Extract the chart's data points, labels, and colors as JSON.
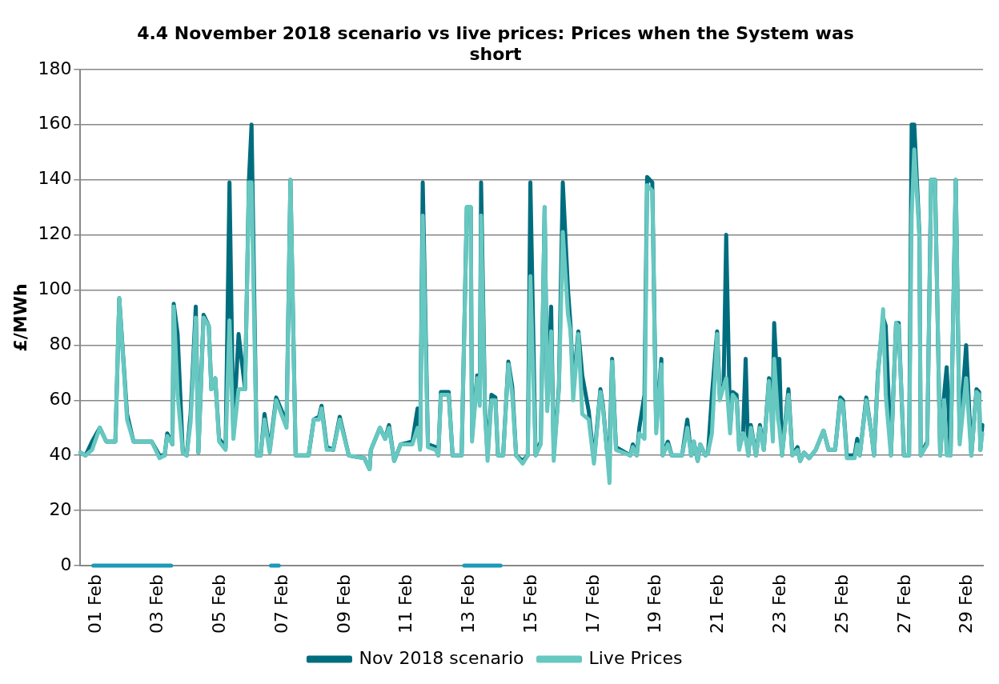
{
  "chart_data": {
    "type": "line",
    "title": "4.4 November 2018 scenario vs live prices: Prices when the System was short",
    "ylabel": "£/MWh",
    "x": [
      "--02-01T00:00",
      "--02-01T04:00",
      "--02-01T09:00",
      "--02-01T15:00",
      "--02-01T20:00",
      "--02-02T03:00",
      "--02-02T06:00",
      "--02-02T12:00",
      "--02-02T17:00",
      "--02-03T07:00",
      "--02-03T13:00",
      "--02-03T17:00",
      "--02-03T19:00",
      "--02-03T23:00",
      "--02-04T00:00",
      "--02-04T03:00",
      "--02-04T07:00",
      "--02-04T10:00",
      "--02-04T13:00",
      "--02-04T17:00",
      "--02-04T19:00",
      "--02-04T23:00",
      "--02-05T03:00",
      "--02-05T05:00",
      "--02-05T08:00",
      "--02-05T11:00",
      "--02-05T16:00",
      "--02-05T19:00",
      "--02-05T22:00",
      "--02-06T02:00",
      "--02-06T07:00",
      "--02-06T10:00",
      "--02-06T12:00",
      "--02-06T16:00",
      "--02-06T19:00",
      "--02-06T22:00",
      "--02-07T02:00",
      "--02-07T07:00",
      "--02-07T15:00",
      "--02-07T18:00",
      "--02-07T22:00",
      "--02-08T08:00",
      "--02-08T12:00",
      "--02-08T16:00",
      "--02-08T18:00",
      "--02-08T22:00",
      "--02-09T03:00",
      "--02-09T08:00",
      "--02-09T15:00",
      "--02-10T03:00",
      "--02-10T07:00",
      "--02-10T08:00",
      "--02-10T15:00",
      "--02-10T19:00",
      "--02-10T22:00",
      "--02-11T02:00",
      "--02-11T07:00",
      "--02-11T16:00",
      "--02-11T20:00",
      "--02-11T22:00",
      "--02-12T00:00",
      "--02-12T04:00",
      "--02-12T10:00",
      "--02-12T12:00",
      "--02-12T14:00",
      "--02-12T20:00",
      "--02-12T23:00",
      "--02-13T06:00",
      "--02-13T10:00",
      "--02-13T13:00",
      "--02-13T14:00",
      "--02-13T18:00",
      "--02-13T20:00",
      "--02-13T21:00",
      "--02-14T00:00",
      "--02-14T02:00",
      "--02-14T05:00",
      "--02-14T08:00",
      "--02-14T10:00",
      "--02-14T14:00",
      "--02-14T18:00",
      "--02-14T21:00",
      "--02-15T00:00",
      "--02-15T05:00",
      "--02-15T09:00",
      "--02-15T11:00",
      "--02-15T15:00",
      "--02-15T19:00",
      "--02-15T22:00",
      "--02-16T00:00",
      "--02-16T03:00",
      "--02-16T05:00",
      "--02-16T09:00",
      "--02-16T12:00",
      "--02-16T16:00",
      "--02-16T18:00",
      "--02-16T20:00",
      "--02-17T00:00",
      "--02-17T03:00",
      "--02-17T08:00",
      "--02-17T12:00",
      "--02-17T17:00",
      "--02-17T19:00",
      "--02-17T22:00",
      "--02-18T00:00",
      "--02-18T02:00",
      "--02-18T05:00",
      "--02-18T16:00",
      "--02-18T18:00",
      "--02-18T21:00",
      "--02-18T23:00",
      "--02-19T03:00",
      "--02-19T05:00",
      "--02-19T09:00",
      "--02-19T12:00",
      "--02-19T16:00",
      "--02-19T17:00",
      "--02-19T21:00",
      "--02-20T00:00",
      "--02-20T08:00",
      "--02-20T12:00",
      "--02-20T15:00",
      "--02-20T17:00",
      "--02-20T20:00",
      "--02-20T22:00",
      "--02-21T02:00",
      "--02-21T04:00",
      "--02-21T07:00",
      "--02-21T11:00",
      "--02-21T13:00",
      "--02-21T16:00",
      "--02-21T18:00",
      "--02-21T21:00",
      "--02-21T23:00",
      "--02-22T02:00",
      "--02-22T04:00",
      "--02-22T07:00",
      "--02-22T09:00",
      "--02-22T11:00",
      "--02-22T13:00",
      "--02-22T17:00",
      "--02-22T20:00",
      "--02-22T23:00",
      "--02-23T03:00",
      "--02-23T06:00",
      "--02-23T07:00",
      "--02-23T10:00",
      "--02-23T11:00",
      "--02-23T13:00",
      "--02-23T18:00",
      "--02-23T21:00",
      "--02-24T01:00",
      "--02-24T03:00",
      "--02-24T06:00",
      "--02-24T10:00",
      "--02-24T15:00",
      "--02-24T21:00",
      "--02-25T01:00",
      "--02-25T06:00",
      "--02-25T10:00",
      "--02-25T12:00",
      "--02-25T15:00",
      "--02-25T21:00",
      "--02-25T23:00",
      "--02-26T01:00",
      "--02-26T06:00",
      "--02-26T10:00",
      "--02-26T12:00",
      "--02-26T15:00",
      "--02-26T19:00",
      "--02-26T21:00",
      "--02-27T01:00",
      "--02-27T05:00",
      "--02-27T07:00",
      "--02-27T11:00",
      "--02-27T15:00",
      "--02-27T17:00",
      "--02-27T19:00",
      "--02-27T23:00",
      "--02-28T00:00",
      "--02-28T05:00",
      "--02-28T08:00",
      "--02-28T11:00",
      "--02-28T15:00",
      "--02-28T18:00",
      "--02-28T20:00",
      "--02-28T23:00",
      "--02-29T03:00",
      "--02-29T06:00",
      "--02-29T11:00",
      "--02-29T15:00",
      "--02-29T19:00",
      "--02-29T21:00",
      "--02-29T22:00",
      "--02-29T23:30"
    ],
    "series": [
      {
        "name": "Nov 2018 scenario",
        "color": "#006d7e",
        "values": [
          41,
          40,
          45,
          50,
          45,
          45,
          97,
          55,
          45,
          45,
          40,
          40,
          48,
          44,
          95,
          84,
          41,
          40,
          55,
          94,
          41,
          91,
          87,
          64,
          68,
          46,
          43,
          139,
          48,
          84,
          64,
          140,
          160,
          40,
          40,
          55,
          42,
          61,
          52,
          140,
          40,
          40,
          53,
          54,
          58,
          43,
          42,
          54,
          40,
          39,
          35,
          42,
          50,
          46,
          51,
          38,
          44,
          45,
          57,
          43,
          139,
          44,
          43,
          40,
          63,
          63,
          40,
          40,
          130,
          130,
          47,
          69,
          60,
          139,
          57,
          40,
          62,
          61,
          40,
          40,
          74,
          65,
          40,
          38,
          40,
          139,
          40,
          45,
          130,
          58,
          94,
          40,
          65,
          139,
          100,
          87,
          65,
          85,
          69,
          56,
          38,
          64,
          58,
          42,
          40,
          75,
          43,
          40,
          44,
          40,
          50,
          62,
          141,
          139,
          50,
          75,
          40,
          45,
          40,
          40,
          53,
          40,
          45,
          38,
          44,
          40,
          41,
          62,
          85,
          62,
          66,
          120,
          50,
          63,
          62,
          43,
          48,
          75,
          40,
          51,
          40,
          51,
          42,
          68,
          60,
          88,
          60,
          75,
          40,
          64,
          40,
          43,
          38,
          41,
          39,
          42,
          49,
          42,
          42,
          61,
          60,
          40,
          40,
          46,
          40,
          61,
          48,
          40,
          70,
          90,
          87,
          40,
          88,
          88,
          40,
          40,
          160,
          160,
          120,
          40,
          45,
          140,
          140,
          40,
          62,
          72,
          40,
          140,
          46,
          80,
          40,
          64,
          63,
          42,
          51
        ]
      },
      {
        "name": "Live Prices",
        "color": "#66c8c0",
        "values": [
          41,
          40,
          42,
          50,
          45,
          45,
          97,
          53,
          45,
          45,
          39,
          40,
          47,
          44,
          94,
          62,
          41,
          40,
          52,
          90,
          41,
          90,
          87,
          64,
          68,
          45,
          42,
          89,
          46,
          64,
          64,
          139,
          139,
          40,
          40,
          53,
          41,
          60,
          50,
          140,
          40,
          40,
          53,
          53,
          57,
          42,
          42,
          53,
          40,
          39,
          35,
          42,
          50,
          46,
          50,
          38,
          44,
          44,
          50,
          42,
          127,
          43,
          42,
          40,
          62,
          62,
          40,
          40,
          130,
          130,
          45,
          68,
          58,
          127,
          55,
          38,
          60,
          60,
          40,
          40,
          73,
          62,
          40,
          37,
          40,
          105,
          40,
          44,
          130,
          56,
          85,
          38,
          64,
          121,
          91,
          85,
          60,
          84,
          55,
          53,
          37,
          63,
          57,
          42,
          30,
          74,
          42,
          40,
          43,
          40,
          48,
          46,
          138,
          136,
          48,
          73,
          40,
          44,
          40,
          40,
          50,
          40,
          45,
          38,
          44,
          40,
          41,
          48,
          84,
          60,
          65,
          68,
          48,
          62,
          60,
          42,
          48,
          46,
          40,
          50,
          40,
          50,
          42,
          67,
          45,
          75,
          53,
          50,
          40,
          62,
          40,
          42,
          38,
          41,
          39,
          42,
          49,
          42,
          42,
          60,
          59,
          39,
          39,
          44,
          40,
          60,
          48,
          40,
          69,
          93,
          62,
          40,
          88,
          87,
          40,
          40,
          127,
          151,
          119,
          40,
          44,
          140,
          140,
          40,
          60,
          40,
          40,
          140,
          44,
          68,
          40,
          63,
          62,
          42,
          48
        ]
      },
      {
        "color": "#1a9ab8",
        "x": [
          "--02-01T10:00",
          "--02-03T22:00",
          "--02-03T23:00",
          "--02-07T03:00",
          "--02-07T09:00",
          "--02-07T10:00",
          "--02-13T08:00",
          "--02-14T12:00"
        ],
        "values": [
          0,
          0,
          null,
          0,
          0,
          null,
          0,
          0
        ]
      }
    ],
    "xlim": [
      "--02-01T00:00",
      "--03-01T00:00"
    ],
    "xticks": [
      {
        "value": "--02-01T12:00",
        "label": "01 Feb"
      },
      {
        "value": "--02-03T12:00",
        "label": "03 Feb"
      },
      {
        "value": "--02-05T12:00",
        "label": "05 Feb"
      },
      {
        "value": "--02-07T12:00",
        "label": "07 Feb"
      },
      {
        "value": "--02-09T12:00",
        "label": "09 Feb"
      },
      {
        "value": "--02-11T12:00",
        "label": "11 Feb"
      },
      {
        "value": "--02-13T12:00",
        "label": "13 Feb"
      },
      {
        "value": "--02-15T12:00",
        "label": "15 Feb"
      },
      {
        "value": "--02-17T12:00",
        "label": "17 Feb"
      },
      {
        "value": "--02-19T12:00",
        "label": "19 Feb"
      },
      {
        "value": "--02-21T12:00",
        "label": "21 Feb"
      },
      {
        "value": "--02-23T12:00",
        "label": "23 Feb"
      },
      {
        "value": "--02-25T12:00",
        "label": "25 Feb"
      },
      {
        "value": "--02-27T12:00",
        "label": "27 Feb"
      },
      {
        "value": "--02-29T12:00",
        "label": "29 Feb"
      }
    ],
    "ylim": [
      0,
      180
    ],
    "yticks": [
      0,
      20,
      40,
      60,
      80,
      100,
      120,
      140,
      160,
      180
    ],
    "grid": "y",
    "legend": "bottom",
    "marker": "none",
    "line_style": "solid"
  }
}
